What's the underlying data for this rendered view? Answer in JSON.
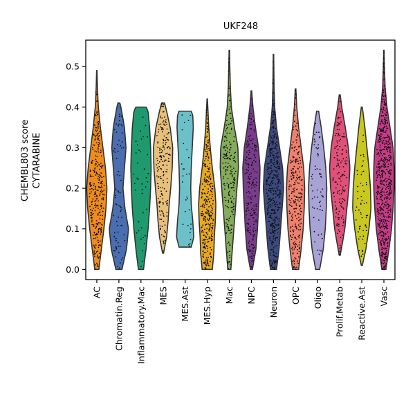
{
  "chart_data": {
    "type": "violin",
    "title": "UKF248",
    "ylabel_lines": [
      "CHEMBL803 score",
      "CYTARABINE"
    ],
    "xlabel": "",
    "ylim": [
      -0.025,
      0.565
    ],
    "yticks": [
      0.0,
      0.1,
      0.2,
      0.3,
      0.4,
      0.5
    ],
    "ytick_labels": [
      "0.0",
      "0.1",
      "0.2",
      "0.3",
      "0.4",
      "0.5"
    ],
    "grid": false,
    "legend": "none",
    "categories": [
      "AC",
      "Chromatin.Reg",
      "Inflammatory.Mac",
      "MES",
      "MES.Ast",
      "MES.Hyp",
      "Mac",
      "NPC",
      "Neuron",
      "OPC",
      "Oligo",
      "Prolif.Metab",
      "Reactive.Ast",
      "Vasc"
    ],
    "colors": [
      "#f08c1c",
      "#4a6eb0",
      "#1e9a6e",
      "#e8c07a",
      "#6cc0c8",
      "#e8a820",
      "#84ac5a",
      "#7a3c8c",
      "#3c4a80",
      "#f0806c",
      "#a8a2d6",
      "#e05078",
      "#c8c820",
      "#c83a88"
    ],
    "violins": [
      {
        "name": "AC",
        "min": 0.0,
        "max": 0.49,
        "n_points": 300,
        "profile": [
          [
            0.0,
            0.2
          ],
          [
            0.05,
            0.45
          ],
          [
            0.1,
            0.7
          ],
          [
            0.15,
            0.9
          ],
          [
            0.2,
            1.0
          ],
          [
            0.25,
            0.85
          ],
          [
            0.3,
            0.6
          ],
          [
            0.35,
            0.35
          ],
          [
            0.4,
            0.15
          ],
          [
            0.45,
            0.06
          ],
          [
            0.49,
            0.02
          ]
        ]
      },
      {
        "name": "Chromatin.Reg",
        "min": 0.0,
        "max": 0.41,
        "n_points": 70,
        "profile": [
          [
            0.0,
            0.3
          ],
          [
            0.05,
            0.75
          ],
          [
            0.1,
            0.95
          ],
          [
            0.15,
            0.6
          ],
          [
            0.2,
            0.4
          ],
          [
            0.25,
            0.55
          ],
          [
            0.3,
            0.7
          ],
          [
            0.35,
            0.55
          ],
          [
            0.4,
            0.2
          ],
          [
            0.41,
            0.1
          ]
        ]
      },
      {
        "name": "Inflammatory.Mac",
        "min": 0.0,
        "max": 0.4,
        "n_points": 40,
        "profile": [
          [
            0.0,
            0.25
          ],
          [
            0.05,
            0.5
          ],
          [
            0.1,
            0.7
          ],
          [
            0.15,
            0.85
          ],
          [
            0.2,
            0.95
          ],
          [
            0.25,
            1.0
          ],
          [
            0.3,
            0.95
          ],
          [
            0.35,
            0.85
          ],
          [
            0.39,
            0.7
          ],
          [
            0.4,
            0.5
          ]
        ]
      },
      {
        "name": "MES",
        "min": 0.04,
        "max": 0.41,
        "n_points": 180,
        "profile": [
          [
            0.04,
            0.05
          ],
          [
            0.08,
            0.35
          ],
          [
            0.12,
            0.5
          ],
          [
            0.16,
            0.6
          ],
          [
            0.2,
            0.75
          ],
          [
            0.25,
            0.9
          ],
          [
            0.3,
            0.95
          ],
          [
            0.35,
            0.7
          ],
          [
            0.39,
            0.35
          ],
          [
            0.41,
            0.15
          ]
        ]
      },
      {
        "name": "MES.Ast",
        "min": 0.055,
        "max": 0.39,
        "n_points": 30,
        "profile": [
          [
            0.055,
            0.6
          ],
          [
            0.08,
            0.85
          ],
          [
            0.12,
            0.75
          ],
          [
            0.16,
            0.6
          ],
          [
            0.2,
            0.55
          ],
          [
            0.25,
            0.6
          ],
          [
            0.3,
            0.7
          ],
          [
            0.35,
            0.8
          ],
          [
            0.38,
            0.75
          ],
          [
            0.39,
            0.6
          ]
        ]
      },
      {
        "name": "MES.Hyp",
        "min": 0.0,
        "max": 0.42,
        "n_points": 300,
        "profile": [
          [
            0.0,
            0.5
          ],
          [
            0.04,
            0.65
          ],
          [
            0.08,
            0.7
          ],
          [
            0.12,
            0.8
          ],
          [
            0.16,
            0.85
          ],
          [
            0.2,
            0.75
          ],
          [
            0.25,
            0.5
          ],
          [
            0.3,
            0.3
          ],
          [
            0.35,
            0.15
          ],
          [
            0.4,
            0.06
          ],
          [
            0.42,
            0.02
          ]
        ]
      },
      {
        "name": "Mac",
        "min": 0.0,
        "max": 0.54,
        "n_points": 200,
        "profile": [
          [
            0.0,
            0.15
          ],
          [
            0.05,
            0.3
          ],
          [
            0.1,
            0.45
          ],
          [
            0.15,
            0.6
          ],
          [
            0.2,
            0.75
          ],
          [
            0.25,
            0.9
          ],
          [
            0.3,
            0.85
          ],
          [
            0.35,
            0.5
          ],
          [
            0.4,
            0.2
          ],
          [
            0.45,
            0.1
          ],
          [
            0.5,
            0.05
          ],
          [
            0.54,
            0.02
          ]
        ]
      },
      {
        "name": "NPC",
        "min": 0.0,
        "max": 0.44,
        "n_points": 200,
        "profile": [
          [
            0.0,
            0.1
          ],
          [
            0.05,
            0.45
          ],
          [
            0.1,
            0.6
          ],
          [
            0.15,
            0.7
          ],
          [
            0.2,
            0.8
          ],
          [
            0.25,
            0.85
          ],
          [
            0.3,
            0.7
          ],
          [
            0.35,
            0.4
          ],
          [
            0.4,
            0.15
          ],
          [
            0.44,
            0.03
          ]
        ]
      },
      {
        "name": "Neuron",
        "min": 0.0,
        "max": 0.53,
        "n_points": 400,
        "profile": [
          [
            0.0,
            0.3
          ],
          [
            0.05,
            0.55
          ],
          [
            0.1,
            0.7
          ],
          [
            0.15,
            0.85
          ],
          [
            0.2,
            1.0
          ],
          [
            0.25,
            0.9
          ],
          [
            0.3,
            0.6
          ],
          [
            0.35,
            0.3
          ],
          [
            0.4,
            0.12
          ],
          [
            0.45,
            0.06
          ],
          [
            0.53,
            0.02
          ]
        ]
      },
      {
        "name": "OPC",
        "min": 0.0,
        "max": 0.445,
        "n_points": 250,
        "profile": [
          [
            0.0,
            0.3
          ],
          [
            0.05,
            0.55
          ],
          [
            0.1,
            0.75
          ],
          [
            0.15,
            0.85
          ],
          [
            0.2,
            0.9
          ],
          [
            0.25,
            0.8
          ],
          [
            0.3,
            0.55
          ],
          [
            0.35,
            0.3
          ],
          [
            0.4,
            0.12
          ],
          [
            0.445,
            0.03
          ]
        ]
      },
      {
        "name": "Oligo",
        "min": 0.0,
        "max": 0.39,
        "n_points": 60,
        "profile": [
          [
            0.0,
            0.2
          ],
          [
            0.05,
            0.55
          ],
          [
            0.1,
            0.75
          ],
          [
            0.15,
            0.85
          ],
          [
            0.2,
            0.9
          ],
          [
            0.25,
            0.8
          ],
          [
            0.3,
            0.6
          ],
          [
            0.35,
            0.35
          ],
          [
            0.39,
            0.1
          ]
        ]
      },
      {
        "name": "Prolif.Metab",
        "min": 0.035,
        "max": 0.43,
        "n_points": 150,
        "profile": [
          [
            0.035,
            0.05
          ],
          [
            0.07,
            0.3
          ],
          [
            0.1,
            0.5
          ],
          [
            0.15,
            0.7
          ],
          [
            0.2,
            0.9
          ],
          [
            0.25,
            1.0
          ],
          [
            0.3,
            0.85
          ],
          [
            0.35,
            0.55
          ],
          [
            0.4,
            0.2
          ],
          [
            0.43,
            0.05
          ]
        ]
      },
      {
        "name": "Reactive.Ast",
        "min": 0.01,
        "max": 0.4,
        "n_points": 60,
        "profile": [
          [
            0.01,
            0.05
          ],
          [
            0.05,
            0.4
          ],
          [
            0.1,
            0.7
          ],
          [
            0.15,
            0.9
          ],
          [
            0.2,
            0.85
          ],
          [
            0.25,
            0.7
          ],
          [
            0.3,
            0.5
          ],
          [
            0.35,
            0.3
          ],
          [
            0.4,
            0.05
          ]
        ]
      },
      {
        "name": "Vasc",
        "min": 0.0,
        "max": 0.54,
        "n_points": 600,
        "profile": [
          [
            0.0,
            0.2
          ],
          [
            0.05,
            0.5
          ],
          [
            0.1,
            0.75
          ],
          [
            0.15,
            0.9
          ],
          [
            0.2,
            1.0
          ],
          [
            0.25,
            1.0
          ],
          [
            0.3,
            0.9
          ],
          [
            0.35,
            0.6
          ],
          [
            0.4,
            0.3
          ],
          [
            0.45,
            0.12
          ],
          [
            0.5,
            0.05
          ],
          [
            0.54,
            0.02
          ]
        ]
      }
    ]
  }
}
